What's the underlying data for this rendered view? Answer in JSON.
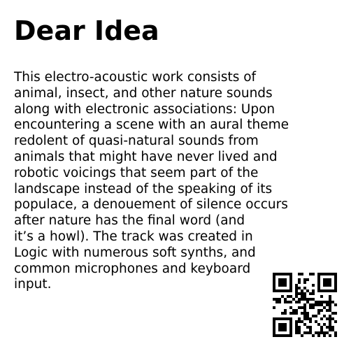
{
  "title": "Dear Idea",
  "description_lines": [
    "This electro-acoustic work consists of",
    "animal, insect, and other nature sounds",
    "along with electronic associations: Upon",
    "encountering a scene with an aural theme",
    "redolent of quasi-natural sounds from",
    "animals that might have never lived and",
    "robotic voicings that seem part of the",
    "landscape instead of the speaking of its",
    "populace, a denouement of silence occurs",
    "after nature has the final word (and",
    "it’s a howl). The track was created in",
    "Logic with numerous soft synths, and",
    "common microphones and keyboard",
    "input."
  ],
  "qr_icon": "qr-code-icon",
  "colors": {
    "background": "#ffffff",
    "text": "#000000"
  }
}
